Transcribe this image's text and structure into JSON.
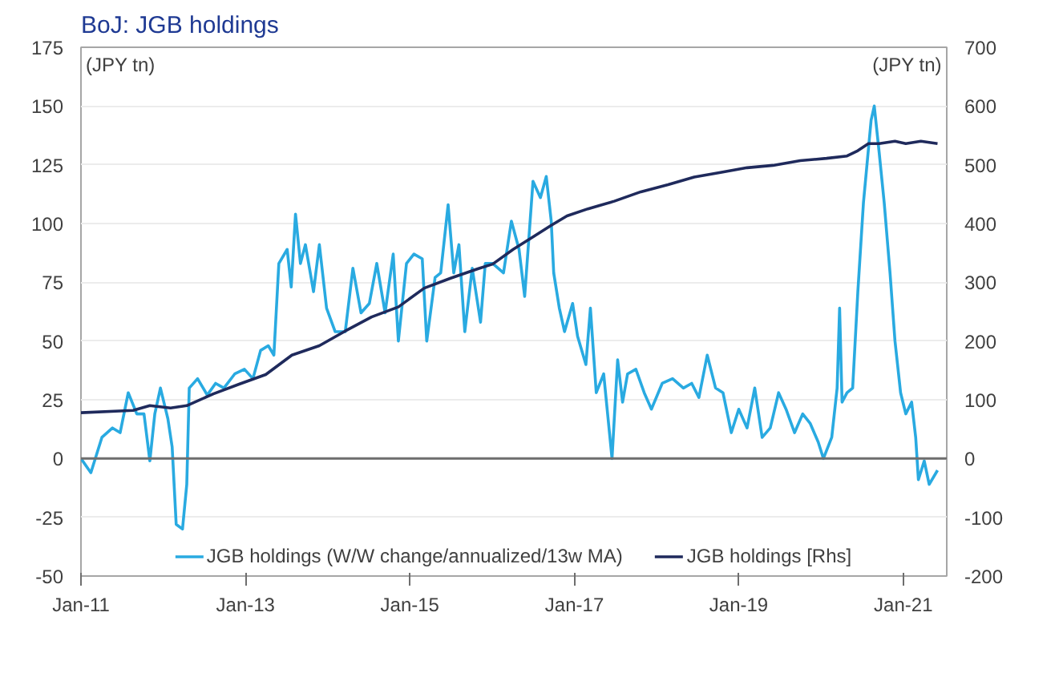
{
  "chart_data": {
    "type": "line",
    "title": "BoJ: JGB holdings",
    "ylabel": "(JPY tn)",
    "y2label": "(JPY tn)",
    "xlim": [
      "2011-01-01",
      "2021-07-13"
    ],
    "xticks": [
      {
        "value": "2011-01-01",
        "label": "Jan-11"
      },
      {
        "value": "2013-01-01",
        "label": "Jan-13"
      },
      {
        "value": "2015-01-01",
        "label": "Jan-15"
      },
      {
        "value": "2017-01-01",
        "label": "Jan-17"
      },
      {
        "value": "2019-01-01",
        "label": "Jan-19"
      },
      {
        "value": "2021-01-01",
        "label": "Jan-21"
      }
    ],
    "ylim": [
      -50,
      175
    ],
    "yticks": [
      -50,
      -25,
      0,
      25,
      50,
      75,
      100,
      125,
      150,
      175
    ],
    "y2lim": [
      -200,
      700
    ],
    "y2ticks": [
      -200,
      -100,
      0,
      100,
      200,
      300,
      400,
      500,
      600,
      700
    ],
    "grid": "y",
    "legend": "bottom",
    "line_style": "solid",
    "ref_lines": [
      {
        "axis": "y",
        "value": 0,
        "color": "#6e6e6e"
      }
    ],
    "series": [
      {
        "name": "JGB holdings (W/W change/annualized/13w MA)",
        "color": "#29aae1",
        "x": [
          "2011-01-01",
          "2011-02-14",
          "2011-04-04",
          "2011-05-21",
          "2011-06-24",
          "2011-07-30",
          "2011-09-06",
          "2011-10-08",
          "2011-11-03",
          "2011-11-25",
          "2011-12-20",
          "2012-01-22",
          "2012-02-10",
          "2012-02-28",
          "2012-03-27",
          "2012-04-15",
          "2012-04-26",
          "2012-06-02",
          "2012-07-15",
          "2012-08-21",
          "2012-09-27",
          "2012-11-14",
          "2012-12-27",
          "2013-02-03",
          "2013-03-09",
          "2013-04-12",
          "2013-05-07",
          "2013-05-29",
          "2013-07-05",
          "2013-07-23",
          "2013-08-11",
          "2013-09-02",
          "2013-09-24",
          "2013-10-30",
          "2013-11-25",
          "2013-12-27",
          "2014-02-03",
          "2014-03-20",
          "2014-04-23",
          "2014-05-29",
          "2014-07-05",
          "2014-08-07",
          "2014-09-13",
          "2014-10-19",
          "2014-11-11",
          "2014-12-17",
          "2015-01-19",
          "2015-02-25",
          "2015-03-17",
          "2015-04-23",
          "2015-05-18",
          "2015-06-20",
          "2015-07-15",
          "2015-08-07",
          "2015-09-02",
          "2015-10-05",
          "2015-11-11",
          "2015-12-02",
          "2016-01-04",
          "2016-02-21",
          "2016-03-27",
          "2016-04-30",
          "2016-05-25",
          "2016-07-01",
          "2016-08-03",
          "2016-08-29",
          "2016-09-20",
          "2016-10-01",
          "2016-10-26",
          "2016-11-18",
          "2016-12-24",
          "2017-01-15",
          "2017-02-21",
          "2017-03-13",
          "2017-04-08",
          "2017-05-11",
          "2017-06-17",
          "2017-07-12",
          "2017-08-03",
          "2017-08-25",
          "2017-10-01",
          "2017-11-07",
          "2017-12-09",
          "2018-01-26",
          "2018-03-13",
          "2018-04-30",
          "2018-06-06",
          "2018-07-08",
          "2018-08-14",
          "2018-09-20",
          "2018-10-23",
          "2018-11-29",
          "2019-01-01",
          "2019-02-07",
          "2019-03-13",
          "2019-04-15",
          "2019-05-21",
          "2019-06-27",
          "2019-07-30",
          "2019-09-06",
          "2019-10-12",
          "2019-11-14",
          "2019-12-20",
          "2020-01-12",
          "2020-02-18",
          "2020-03-13",
          "2020-03-24",
          "2020-04-04",
          "2020-04-26",
          "2020-05-21",
          "2020-06-13",
          "2020-07-08",
          "2020-08-11",
          "2020-08-25",
          "2020-09-16",
          "2020-10-08",
          "2020-11-03",
          "2020-11-25",
          "2020-12-20",
          "2021-01-12",
          "2021-02-07",
          "2021-02-25",
          "2021-03-09",
          "2021-04-04",
          "2021-04-26",
          "2021-06-02"
        ],
        "values": [
          0,
          -6,
          9,
          13,
          11,
          28,
          19,
          19,
          -1,
          19,
          30,
          17,
          5,
          -28,
          -30,
          -11,
          30,
          34,
          27,
          32,
          30,
          36,
          38,
          34,
          46,
          48,
          44,
          83,
          89,
          73,
          104,
          83,
          91,
          71,
          91,
          64,
          54,
          54,
          81,
          62,
          66,
          83,
          62,
          87,
          50,
          83,
          87,
          85,
          50,
          77,
          79,
          108,
          79,
          91,
          54,
          81,
          58,
          83,
          83,
          79,
          101,
          89,
          69,
          118,
          111,
          120,
          101,
          79,
          64,
          54,
          66,
          52,
          40,
          64,
          28,
          36,
          0,
          42,
          24,
          36,
          38,
          28,
          21,
          32,
          34,
          30,
          32,
          26,
          44,
          30,
          28,
          11,
          21,
          13,
          30,
          9,
          13,
          28,
          21,
          11,
          19,
          15,
          7,
          0,
          9,
          30,
          64,
          24,
          28,
          30,
          71,
          109,
          144,
          150,
          130,
          109,
          79,
          50,
          28,
          19,
          24,
          9,
          -9,
          -1,
          -11,
          -5
        ]
      },
      {
        "name": "JGB holdings [Rhs]",
        "color": "#1f2a5c",
        "axis": "y2",
        "x": [
          "2011-01-01",
          "2011-08-21",
          "2011-11-03",
          "2012-02-03",
          "2012-04-15",
          "2012-08-11",
          "2012-12-06",
          "2013-04-01",
          "2013-07-26",
          "2013-11-25",
          "2014-03-20",
          "2014-07-15",
          "2014-11-11",
          "2015-03-06",
          "2015-07-01",
          "2015-10-30",
          "2016-01-04",
          "2016-04-04",
          "2016-07-12",
          "2016-09-20",
          "2016-11-29",
          "2017-03-02",
          "2017-06-27",
          "2017-10-23",
          "2018-02-21",
          "2018-06-17",
          "2018-10-12",
          "2019-02-07",
          "2019-06-02",
          "2019-10-01",
          "2020-01-26",
          "2020-04-26",
          "2020-06-13",
          "2020-07-30",
          "2020-09-16",
          "2020-11-25",
          "2021-01-12",
          "2021-03-20",
          "2021-06-02"
        ],
        "values": [
          78,
          82,
          90,
          86,
          90,
          110,
          127,
          143,
          176,
          192,
          217,
          241,
          258,
          290,
          307,
          323,
          331,
          356,
          380,
          397,
          413,
          425,
          438,
          454,
          466,
          479,
          487,
          495,
          499,
          507,
          511,
          515,
          524,
          536,
          536,
          540,
          536,
          540,
          536
        ]
      }
    ]
  }
}
